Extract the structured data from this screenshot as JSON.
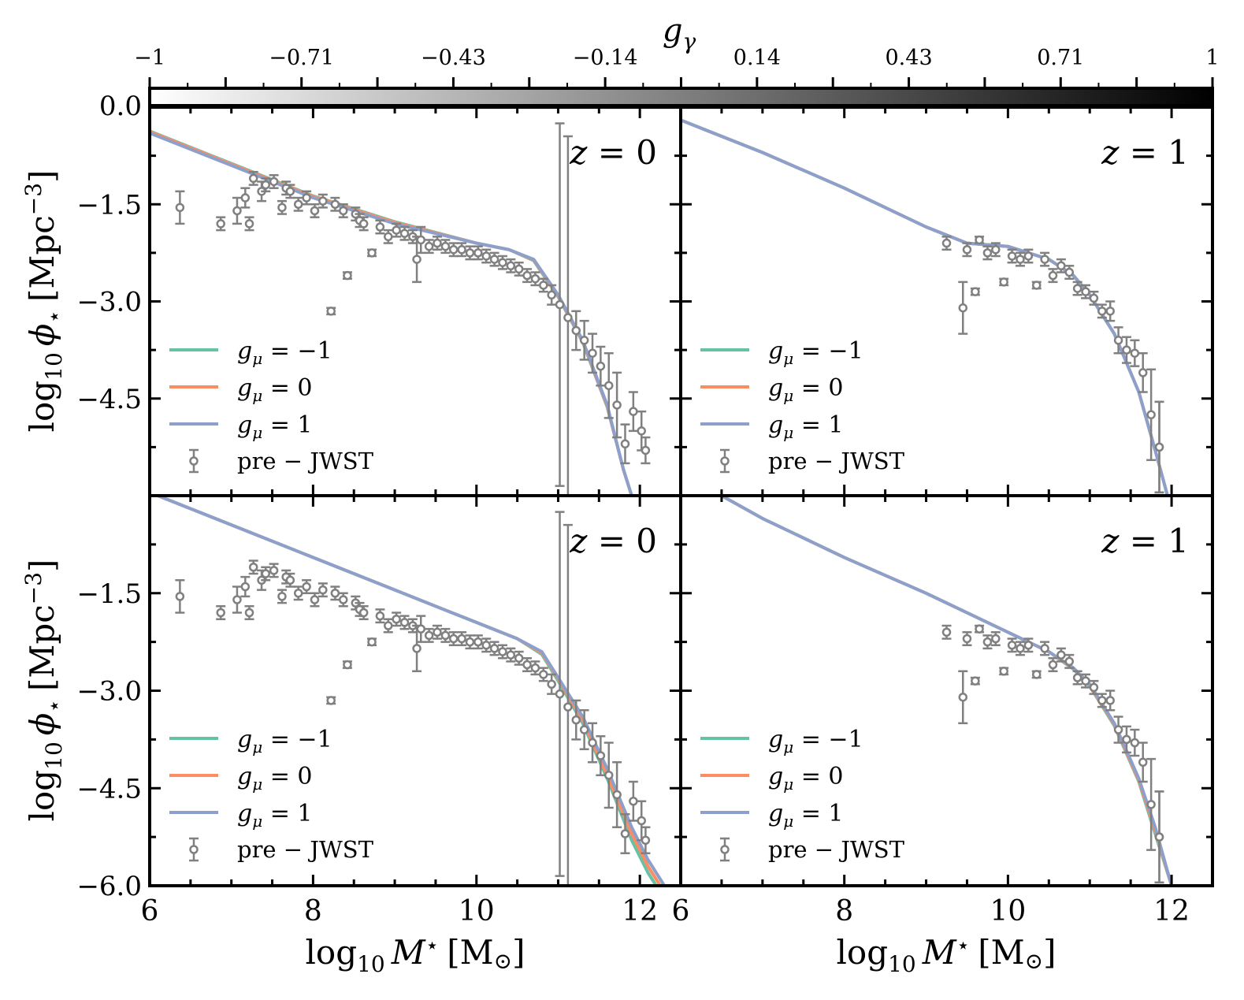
{
  "colorbar": {
    "label": "g",
    "label_sub": "γ",
    "ticks": [
      "−1",
      "−0.71",
      "−0.43",
      "−0.14",
      "0.14",
      "0.43",
      "0.71",
      "1"
    ],
    "zero_label": "0.0",
    "gradient": [
      "#ffffff",
      "#000000"
    ]
  },
  "colors": {
    "gmu_minus1": "#66c2a5",
    "gmu_0": "#fc8d62",
    "gmu_1": "#8da0cb",
    "points": "#808080",
    "axes": "#000000"
  },
  "axes": {
    "xlabel": "log10 M⋆ [M⊙]",
    "xlabel_parts": [
      "log",
      "10",
      "M",
      "⋆",
      "[M",
      "⊙",
      "]"
    ],
    "ylabel": "log10 ϕ⋆ [Mpc−3]",
    "ylabel_parts": [
      "log",
      "10",
      "ϕ",
      "⋆",
      "[Mpc",
      "−3",
      "]"
    ],
    "xticks": [
      "6",
      "8",
      "10",
      "12"
    ],
    "yticks": [
      "−1.5",
      "−3.0",
      "−4.5",
      "−6.0"
    ]
  },
  "legend": {
    "entries": [
      {
        "label": "gμ = −1",
        "g": "g",
        "sub": "μ",
        "rest": " = −1"
      },
      {
        "label": "gμ = 0",
        "g": "g",
        "sub": "μ",
        "rest": " = 0"
      },
      {
        "label": "gμ = 1",
        "g": "g",
        "sub": "μ",
        "rest": " = 1"
      }
    ],
    "points_label": "pre − JWST"
  },
  "panels": [
    {
      "z_label": "z = 0",
      "z_var": "z",
      "z_rest": " = 0",
      "redshift": 0,
      "show_xticks": false,
      "show_ytick_bottom": false
    },
    {
      "z_label": "z = 1",
      "z_var": "z",
      "z_rest": " = 1",
      "redshift": 1,
      "show_xticks": false,
      "show_ytick_bottom": false
    },
    {
      "z_label": "z = 0",
      "z_var": "z",
      "z_rest": " = 0",
      "redshift": 0,
      "show_xticks": true,
      "show_ytick_bottom": true
    },
    {
      "z_label": "z = 1",
      "z_var": "z",
      "z_rest": " = 1",
      "redshift": 1,
      "show_xticks": true,
      "show_ytick_bottom": false
    }
  ],
  "chart_data": [
    {
      "type": "line",
      "panel": "top-left",
      "title": "z = 0",
      "xlim": [
        6,
        12.5
      ],
      "ylim": [
        -6.0,
        0.0
      ],
      "series": [
        {
          "name": "gμ = 1",
          "x": [
            6.0,
            7.0,
            8.0,
            9.0,
            10.0,
            10.4,
            10.7,
            11.0,
            11.3,
            11.6,
            11.8,
            11.9
          ],
          "y": [
            -0.4,
            -0.9,
            -1.4,
            -1.8,
            -2.1,
            -2.2,
            -2.35,
            -2.9,
            -3.6,
            -4.6,
            -5.6,
            -6.0
          ]
        },
        {
          "name": "gμ = 0",
          "x": [
            6.0,
            7.0,
            8.0,
            9.0,
            10.0,
            10.4,
            10.7,
            11.0,
            11.3,
            11.6,
            11.8,
            11.9
          ],
          "y": [
            -0.38,
            -0.88,
            -1.38,
            -1.78,
            -2.1,
            -2.2,
            -2.36,
            -2.92,
            -3.62,
            -4.62,
            -5.6,
            -6.0
          ]
        },
        {
          "name": "gμ = −1",
          "x": [
            6.0,
            7.0,
            8.0,
            9.0,
            10.0,
            10.4,
            10.7,
            11.0,
            11.3,
            11.6,
            11.8,
            11.9
          ],
          "y": [
            -0.37,
            -0.87,
            -1.37,
            -1.77,
            -2.1,
            -2.2,
            -2.37,
            -2.93,
            -3.63,
            -4.63,
            -5.6,
            -6.0
          ]
        },
        {
          "name": "pre − JWST",
          "kind": "errorbar",
          "x": [
            6.37,
            6.87,
            7.07,
            7.17,
            7.22,
            7.27,
            7.37,
            7.42,
            7.52,
            7.62,
            7.67,
            7.72,
            7.82,
            7.92,
            8.02,
            8.12,
            8.22,
            8.27,
            8.37,
            8.42,
            8.52,
            8.57,
            8.62,
            8.72,
            8.82,
            8.92,
            9.02,
            9.12,
            9.22,
            9.27,
            9.32,
            9.42,
            9.52,
            9.62,
            9.72,
            9.82,
            9.92,
            10.02,
            10.12,
            10.22,
            10.32,
            10.42,
            10.52,
            10.62,
            10.72,
            10.82,
            10.92,
            11.02,
            11.12,
            11.22,
            11.32,
            11.42,
            11.52,
            11.62,
            11.72,
            11.82,
            11.92,
            12.02,
            12.07
          ],
          "y": [
            -1.55,
            -1.8,
            -1.6,
            -1.4,
            -1.8,
            -1.1,
            -1.3,
            -1.2,
            -1.15,
            -1.55,
            -1.25,
            -1.3,
            -1.5,
            -1.4,
            -1.6,
            -1.45,
            -3.15,
            -1.5,
            -1.6,
            -2.6,
            -1.65,
            -1.75,
            -1.8,
            -2.25,
            -1.85,
            -2.0,
            -1.9,
            -1.95,
            -2.0,
            -2.35,
            -2.05,
            -2.15,
            -2.1,
            -2.15,
            -2.2,
            -2.2,
            -2.25,
            -2.25,
            -2.3,
            -2.35,
            -2.4,
            -2.45,
            -2.5,
            -2.6,
            -2.65,
            -2.75,
            -2.9,
            -3.05,
            -3.25,
            -3.45,
            -3.6,
            -3.8,
            -4.0,
            -4.3,
            -4.6,
            -5.2,
            -4.7,
            -5.0,
            -5.3
          ],
          "yerr": [
            0.25,
            0.1,
            0.2,
            0.15,
            0.1,
            0.1,
            0.15,
            0.1,
            0.1,
            0.1,
            0.1,
            0.1,
            0.1,
            0.1,
            0.1,
            0.1,
            0.05,
            0.1,
            0.1,
            0.05,
            0.1,
            0.1,
            0.1,
            0.05,
            0.1,
            0.1,
            0.1,
            0.1,
            0.1,
            0.35,
            0.2,
            0.1,
            0.1,
            0.1,
            0.1,
            0.1,
            0.1,
            0.1,
            0.1,
            0.1,
            0.1,
            0.1,
            0.1,
            0.1,
            0.1,
            0.1,
            0.15,
            2.8,
            2.8,
            0.3,
            0.3,
            0.3,
            0.3,
            0.5,
            0.5,
            0.3,
            0.3,
            0.3,
            0.2
          ]
        }
      ]
    },
    {
      "type": "line",
      "panel": "top-right",
      "title": "z = 1",
      "xlim": [
        6,
        12.5
      ],
      "ylim": [
        -6.0,
        0.0
      ],
      "series": [
        {
          "name": "gμ = 1",
          "x": [
            6.0,
            7.0,
            8.0,
            9.0,
            9.5,
            10.0,
            10.5,
            10.8,
            11.0,
            11.3,
            11.6,
            11.8,
            11.95
          ],
          "y": [
            -0.2,
            -0.7,
            -1.25,
            -1.85,
            -2.1,
            -2.15,
            -2.35,
            -2.6,
            -2.9,
            -3.5,
            -4.4,
            -5.3,
            -6.0
          ]
        },
        {
          "name": "gμ = 0",
          "x": [
            6.0,
            7.0,
            8.0,
            9.0,
            9.5,
            10.0,
            10.5,
            10.8,
            11.0,
            11.3,
            11.6,
            11.8,
            11.95
          ],
          "y": [
            -0.2,
            -0.7,
            -1.25,
            -1.85,
            -2.1,
            -2.15,
            -2.35,
            -2.6,
            -2.9,
            -3.5,
            -4.4,
            -5.3,
            -6.0
          ]
        },
        {
          "name": "gμ = −1",
          "x": [
            6.0,
            7.0,
            8.0,
            9.0,
            9.5,
            10.0,
            10.5,
            10.8,
            11.0,
            11.3,
            11.6,
            11.8,
            11.95
          ],
          "y": [
            -0.2,
            -0.7,
            -1.25,
            -1.85,
            -2.1,
            -2.15,
            -2.35,
            -2.6,
            -2.9,
            -3.5,
            -4.4,
            -5.3,
            -6.0
          ]
        },
        {
          "name": "pre − JWST",
          "kind": "errorbar",
          "x": [
            9.25,
            9.45,
            9.5,
            9.6,
            9.65,
            9.75,
            9.85,
            9.95,
            10.05,
            10.15,
            10.25,
            10.35,
            10.45,
            10.55,
            10.65,
            10.75,
            10.85,
            10.95,
            11.05,
            11.15,
            11.25,
            11.35,
            11.45,
            11.55,
            11.65,
            11.75,
            11.85,
            11.85
          ],
          "y": [
            -2.1,
            -3.1,
            -2.2,
            -2.85,
            -2.05,
            -2.25,
            -2.2,
            -2.7,
            -2.3,
            -2.35,
            -2.3,
            -2.75,
            -2.35,
            -2.6,
            -2.45,
            -2.55,
            -2.8,
            -2.85,
            -2.95,
            -3.15,
            -3.15,
            -3.6,
            -3.75,
            -3.8,
            -4.1,
            -4.75,
            -5.25,
            -5.25
          ],
          "yerr": [
            0.1,
            0.4,
            0.1,
            0.05,
            0.05,
            0.1,
            0.1,
            0.05,
            0.1,
            0.1,
            0.1,
            0.05,
            0.1,
            0.1,
            0.1,
            0.1,
            0.1,
            0.1,
            0.1,
            0.1,
            0.15,
            0.2,
            0.2,
            0.2,
            0.3,
            0.7,
            0.7,
            0.7
          ]
        }
      ]
    },
    {
      "type": "line",
      "panel": "bottom-left",
      "title": "z = 0",
      "xlim": [
        6,
        12.5
      ],
      "ylim": [
        -6.0,
        0.0
      ],
      "series": [
        {
          "name": "gμ = 1",
          "x": [
            6.0,
            7.0,
            8.0,
            9.0,
            9.5,
            10.0,
            10.5,
            10.8,
            11.0,
            11.3,
            11.6,
            11.9,
            12.1,
            12.3
          ],
          "y": [
            0.05,
            -0.45,
            -0.95,
            -1.45,
            -1.7,
            -1.95,
            -2.2,
            -2.4,
            -2.8,
            -3.4,
            -4.2,
            -5.1,
            -5.6,
            -6.0
          ]
        },
        {
          "name": "gμ = 0",
          "x": [
            6.0,
            7.0,
            8.0,
            9.0,
            9.5,
            10.0,
            10.5,
            10.8,
            11.0,
            11.3,
            11.6,
            11.9,
            12.1,
            12.25
          ],
          "y": [
            0.05,
            -0.45,
            -0.95,
            -1.45,
            -1.7,
            -1.95,
            -2.2,
            -2.42,
            -2.82,
            -3.45,
            -4.3,
            -5.2,
            -5.7,
            -6.0
          ]
        },
        {
          "name": "gμ = −1",
          "x": [
            6.0,
            7.0,
            8.0,
            9.0,
            9.5,
            10.0,
            10.5,
            10.8,
            11.0,
            11.3,
            11.6,
            11.9,
            12.1,
            12.2
          ],
          "y": [
            0.05,
            -0.45,
            -0.95,
            -1.45,
            -1.7,
            -1.95,
            -2.2,
            -2.44,
            -2.85,
            -3.5,
            -4.35,
            -5.3,
            -5.8,
            -6.0
          ]
        },
        {
          "name": "pre − JWST",
          "kind": "errorbar",
          "x": [
            6.37,
            6.87,
            7.07,
            7.17,
            7.22,
            7.27,
            7.37,
            7.42,
            7.52,
            7.62,
            7.67,
            7.72,
            7.82,
            7.92,
            8.02,
            8.12,
            8.22,
            8.27,
            8.37,
            8.42,
            8.52,
            8.57,
            8.62,
            8.72,
            8.82,
            8.92,
            9.02,
            9.12,
            9.22,
            9.27,
            9.32,
            9.42,
            9.52,
            9.62,
            9.72,
            9.82,
            9.92,
            10.02,
            10.12,
            10.22,
            10.32,
            10.42,
            10.52,
            10.62,
            10.72,
            10.82,
            10.92,
            11.02,
            11.12,
            11.22,
            11.32,
            11.42,
            11.52,
            11.62,
            11.72,
            11.82,
            11.92,
            12.02,
            12.07
          ],
          "y": [
            -1.55,
            -1.8,
            -1.6,
            -1.4,
            -1.8,
            -1.1,
            -1.3,
            -1.2,
            -1.15,
            -1.55,
            -1.25,
            -1.3,
            -1.5,
            -1.4,
            -1.6,
            -1.45,
            -3.15,
            -1.5,
            -1.6,
            -2.6,
            -1.65,
            -1.75,
            -1.8,
            -2.25,
            -1.85,
            -2.0,
            -1.9,
            -1.95,
            -2.0,
            -2.35,
            -2.05,
            -2.15,
            -2.1,
            -2.15,
            -2.2,
            -2.2,
            -2.25,
            -2.25,
            -2.3,
            -2.35,
            -2.4,
            -2.45,
            -2.5,
            -2.6,
            -2.65,
            -2.75,
            -2.9,
            -3.05,
            -3.25,
            -3.45,
            -3.6,
            -3.8,
            -4.0,
            -4.3,
            -4.6,
            -5.2,
            -4.7,
            -5.0,
            -5.3
          ],
          "yerr": [
            0.25,
            0.1,
            0.2,
            0.15,
            0.1,
            0.1,
            0.15,
            0.1,
            0.1,
            0.1,
            0.1,
            0.1,
            0.1,
            0.1,
            0.1,
            0.1,
            0.05,
            0.1,
            0.1,
            0.05,
            0.1,
            0.1,
            0.1,
            0.05,
            0.1,
            0.1,
            0.1,
            0.1,
            0.1,
            0.35,
            0.2,
            0.1,
            0.1,
            0.1,
            0.1,
            0.1,
            0.1,
            0.1,
            0.1,
            0.1,
            0.1,
            0.1,
            0.1,
            0.1,
            0.1,
            0.1,
            0.15,
            2.8,
            2.8,
            0.3,
            0.3,
            0.3,
            0.3,
            0.5,
            0.5,
            0.3,
            0.3,
            0.3,
            0.2
          ]
        }
      ]
    },
    {
      "type": "line",
      "panel": "bottom-right",
      "title": "z = 1",
      "xlim": [
        6,
        12.5
      ],
      "ylim": [
        -6.0,
        0.0
      ],
      "series": [
        {
          "name": "gμ = 1",
          "x": [
            6.5,
            7.0,
            8.0,
            9.0,
            10.0,
            10.5,
            10.8,
            11.0,
            11.3,
            11.6,
            11.8,
            12.0
          ],
          "y": [
            0.0,
            -0.35,
            -0.95,
            -1.5,
            -2.1,
            -2.4,
            -2.65,
            -2.9,
            -3.5,
            -4.35,
            -5.1,
            -6.0
          ]
        },
        {
          "name": "gμ = 0",
          "x": [
            6.5,
            7.0,
            8.0,
            9.0,
            10.0,
            10.5,
            10.8,
            11.0,
            11.3,
            11.6,
            11.8,
            12.0
          ],
          "y": [
            0.0,
            -0.35,
            -0.95,
            -1.5,
            -2.1,
            -2.4,
            -2.66,
            -2.92,
            -3.52,
            -4.38,
            -5.15,
            -6.0
          ]
        },
        {
          "name": "gμ = −1",
          "x": [
            6.5,
            7.0,
            8.0,
            9.0,
            10.0,
            10.5,
            10.8,
            11.0,
            11.3,
            11.6,
            11.8,
            12.0
          ],
          "y": [
            0.0,
            -0.35,
            -0.95,
            -1.5,
            -2.1,
            -2.4,
            -2.67,
            -2.93,
            -3.54,
            -4.4,
            -5.2,
            -6.0
          ]
        },
        {
          "name": "pre − JWST",
          "kind": "errorbar",
          "x": [
            9.25,
            9.45,
            9.5,
            9.6,
            9.65,
            9.75,
            9.85,
            9.95,
            10.05,
            10.15,
            10.25,
            10.35,
            10.45,
            10.55,
            10.65,
            10.75,
            10.85,
            10.95,
            11.05,
            11.15,
            11.25,
            11.35,
            11.45,
            11.55,
            11.65,
            11.75,
            11.85,
            11.85
          ],
          "y": [
            -2.1,
            -3.1,
            -2.2,
            -2.85,
            -2.05,
            -2.25,
            -2.2,
            -2.7,
            -2.3,
            -2.35,
            -2.3,
            -2.75,
            -2.35,
            -2.6,
            -2.45,
            -2.55,
            -2.8,
            -2.85,
            -2.95,
            -3.15,
            -3.15,
            -3.6,
            -3.75,
            -3.8,
            -4.1,
            -4.75,
            -5.25,
            -5.25
          ],
          "yerr": [
            0.1,
            0.4,
            0.1,
            0.05,
            0.05,
            0.1,
            0.1,
            0.05,
            0.1,
            0.1,
            0.1,
            0.05,
            0.1,
            0.1,
            0.1,
            0.1,
            0.1,
            0.1,
            0.1,
            0.1,
            0.15,
            0.2,
            0.2,
            0.2,
            0.3,
            0.7,
            0.7,
            0.7
          ]
        }
      ]
    }
  ]
}
